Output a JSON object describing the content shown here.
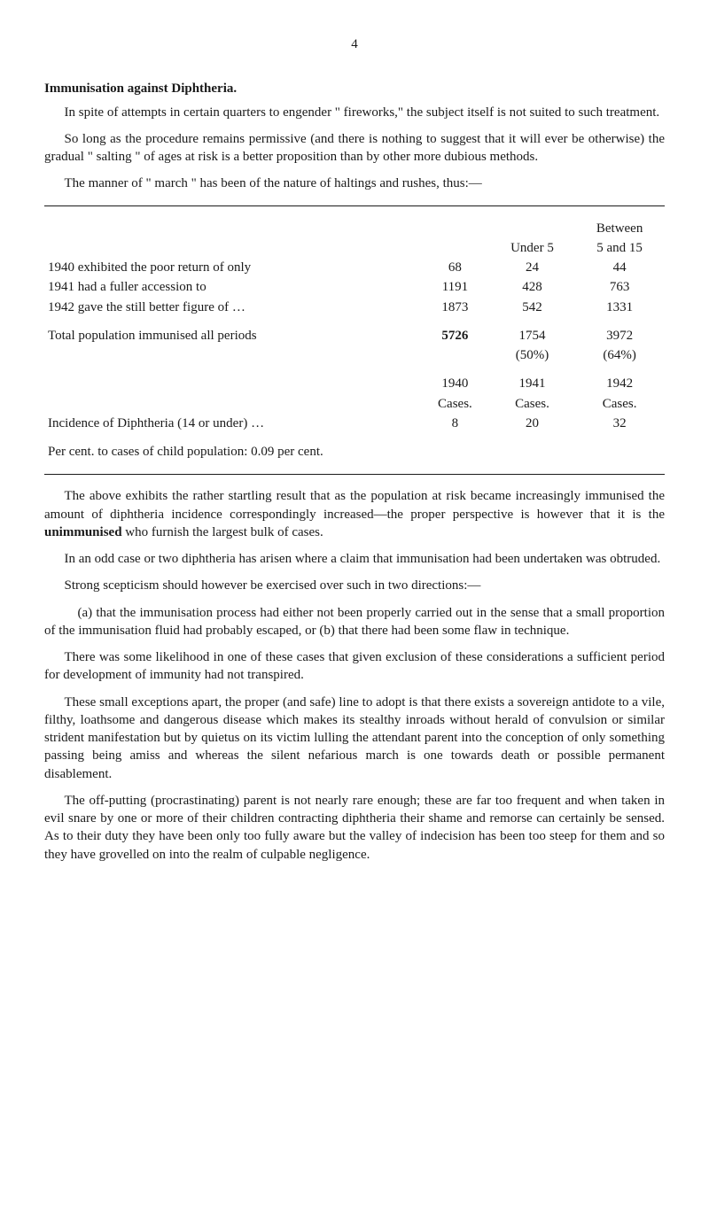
{
  "page_number": "4",
  "title": "Immunisation against Diphtheria.",
  "intro_p1": "In spite of attempts in certain quarters to engender \" fireworks,\" the subject itself is not suited to such treatment.",
  "intro_p2": "So long as the procedure remains permissive (and there is nothing to suggest that it will ever be otherwise) the gradual \" salting \" of ages at risk is a better proposition than by other more dubious methods.",
  "intro_p3": "The manner of \" march \" has been of the nature of haltings and rushes, thus:—",
  "table_headers": {
    "under5": "Under 5",
    "between": "Between",
    "between2": "5 and 15"
  },
  "table_rows": [
    {
      "label": "1940 exhibited the poor return of only",
      "c1": "68",
      "c2": "24",
      "c3": "44"
    },
    {
      "label": "1941 had a fuller accession to",
      "c1": "1191",
      "c2": "428",
      "c3": "763"
    },
    {
      "label": "1942 gave the still better figure of …",
      "c1": "1873",
      "c2": "542",
      "c3": "1331"
    }
  ],
  "table_total": {
    "label": "Total population immunised all periods",
    "c1": "5726",
    "c2": "1754",
    "c3": "3972"
  },
  "table_pct": {
    "c2": "(50%)",
    "c3": "(64%)"
  },
  "table_years": {
    "c1": "1940",
    "c2": "1941",
    "c3": "1942"
  },
  "table_cases": {
    "c1": "Cases.",
    "c2": "Cases.",
    "c3": "Cases."
  },
  "table_incidence": {
    "label": "Incidence of Diphtheria (14 or under) …",
    "c1": "8",
    "c2": "20",
    "c3": "32"
  },
  "table_footer": "Per cent. to cases of child population: 0.09 per cent.",
  "body_p1_a": "The above exhibits the rather startling result that as the population at risk became increasingly immunised the amount of diphtheria incidence correspondingly increased—the proper perspective is however that it is the ",
  "body_p1_b": "unimmunised",
  "body_p1_c": " who furnish the largest bulk of cases.",
  "body_p2": "In an odd case or two diphtheria has arisen where a claim that immunisation had been undertaken was obtruded.",
  "body_p3": "Strong scepticism should however be exercised over such in two directions:—",
  "body_p4": "(a) that the immunisation process had either not been properly carried out in the sense that a small proportion of the immunisation fluid had probably escaped, or (b) that there had been some flaw in technique.",
  "body_p5": "There was some likelihood in one of these cases that given exclusion of these considerations a sufficient period for development of immunity had not transpired.",
  "body_p6": "These small exceptions apart, the proper (and safe) line to adopt is that there exists a sovereign antidote to a vile, filthy, loathsome and dangerous disease which makes its stealthy inroads without herald of convulsion or similar strident manifestation but by quietus on its victim lulling the attendant parent into the conception of only something passing being amiss and whereas the silent nefarious march is one towards death or possible permanent disablement.",
  "body_p7": "The off-putting (procrastinating) parent is not nearly rare enough; these are far too frequent and when taken in evil snare by one or more of their children contracting diphtheria their shame and remorse can certainly be sensed. As to their duty they have been only too fully aware but the valley of indecision has been too steep for them and so they have grovelled on into the realm of culpable negligence."
}
